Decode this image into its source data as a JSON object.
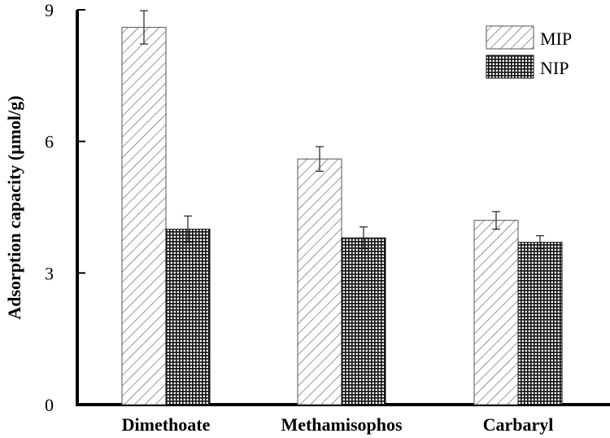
{
  "chart_data": {
    "type": "bar",
    "title": "",
    "xlabel": "",
    "ylabel": "Adsorption capacity (μmol/g)",
    "ylim": [
      0,
      9
    ],
    "yticks": [
      0,
      3,
      6,
      9
    ],
    "yticks_text": [
      "0",
      "3",
      "6",
      "9"
    ],
    "categories": [
      "Dimethoate",
      "Methamisophos",
      "Carbaryl"
    ],
    "series": [
      {
        "name": "MIP",
        "values": [
          8.6,
          5.6,
          4.2
        ],
        "errors": [
          0.38,
          0.28,
          0.2
        ],
        "pattern": "diagonal-hatch"
      },
      {
        "name": "NIP",
        "values": [
          4.0,
          3.8,
          3.7
        ],
        "errors": [
          0.3,
          0.25,
          0.15
        ],
        "pattern": "dark-grid"
      }
    ],
    "legend_position": "top-right",
    "grid": false
  }
}
